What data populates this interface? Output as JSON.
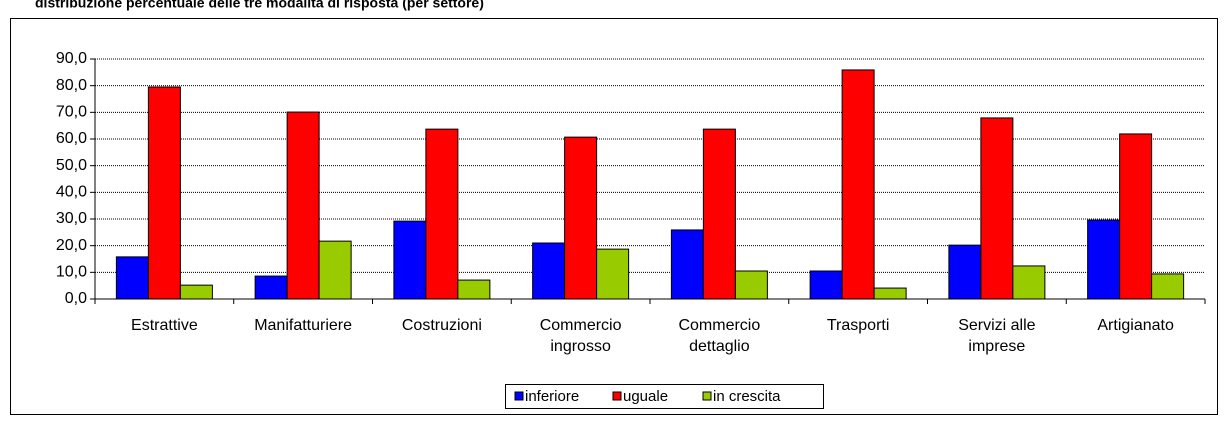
{
  "chart_data": {
    "type": "bar",
    "title": "distribuzione percentuale delle tre modalità di risposta (per settore)",
    "categories": [
      [
        "Estrattive"
      ],
      [
        "Manifatturiere"
      ],
      [
        "Costruzioni"
      ],
      [
        "Commercio",
        "ingrosso"
      ],
      [
        "Commercio",
        "dettaglio"
      ],
      [
        "Trasporti"
      ],
      [
        "Servizi alle",
        "imprese"
      ],
      [
        "Artigianato"
      ]
    ],
    "series": [
      {
        "name": "inferiore",
        "color": "#0000ff",
        "values": [
          15.8,
          8.6,
          29.2,
          21.0,
          25.9,
          10.5,
          20.2,
          29.6
        ]
      },
      {
        "name": "uguale",
        "color": "#ff0000",
        "values": [
          79.5,
          70.1,
          63.7,
          60.7,
          63.7,
          85.9,
          67.9,
          61.9
        ]
      },
      {
        "name": "in crescita",
        "color": "#99cc00",
        "values": [
          5.2,
          21.7,
          7.1,
          18.7,
          10.5,
          4.1,
          12.4,
          9.4
        ]
      }
    ],
    "ylim": [
      0,
      90
    ],
    "yticks": [
      {
        "value": 0,
        "label": "0,0"
      },
      {
        "value": 10,
        "label": "10,0"
      },
      {
        "value": 20,
        "label": "20,0"
      },
      {
        "value": 30,
        "label": "30,0"
      },
      {
        "value": 40,
        "label": "40,0"
      },
      {
        "value": 50,
        "label": "50,0"
      },
      {
        "value": 60,
        "label": "60,0"
      },
      {
        "value": 70,
        "label": "70,0"
      },
      {
        "value": 80,
        "label": "80,0"
      },
      {
        "value": 90,
        "label": "90,0"
      }
    ],
    "grid": true,
    "legend": "bottom"
  }
}
